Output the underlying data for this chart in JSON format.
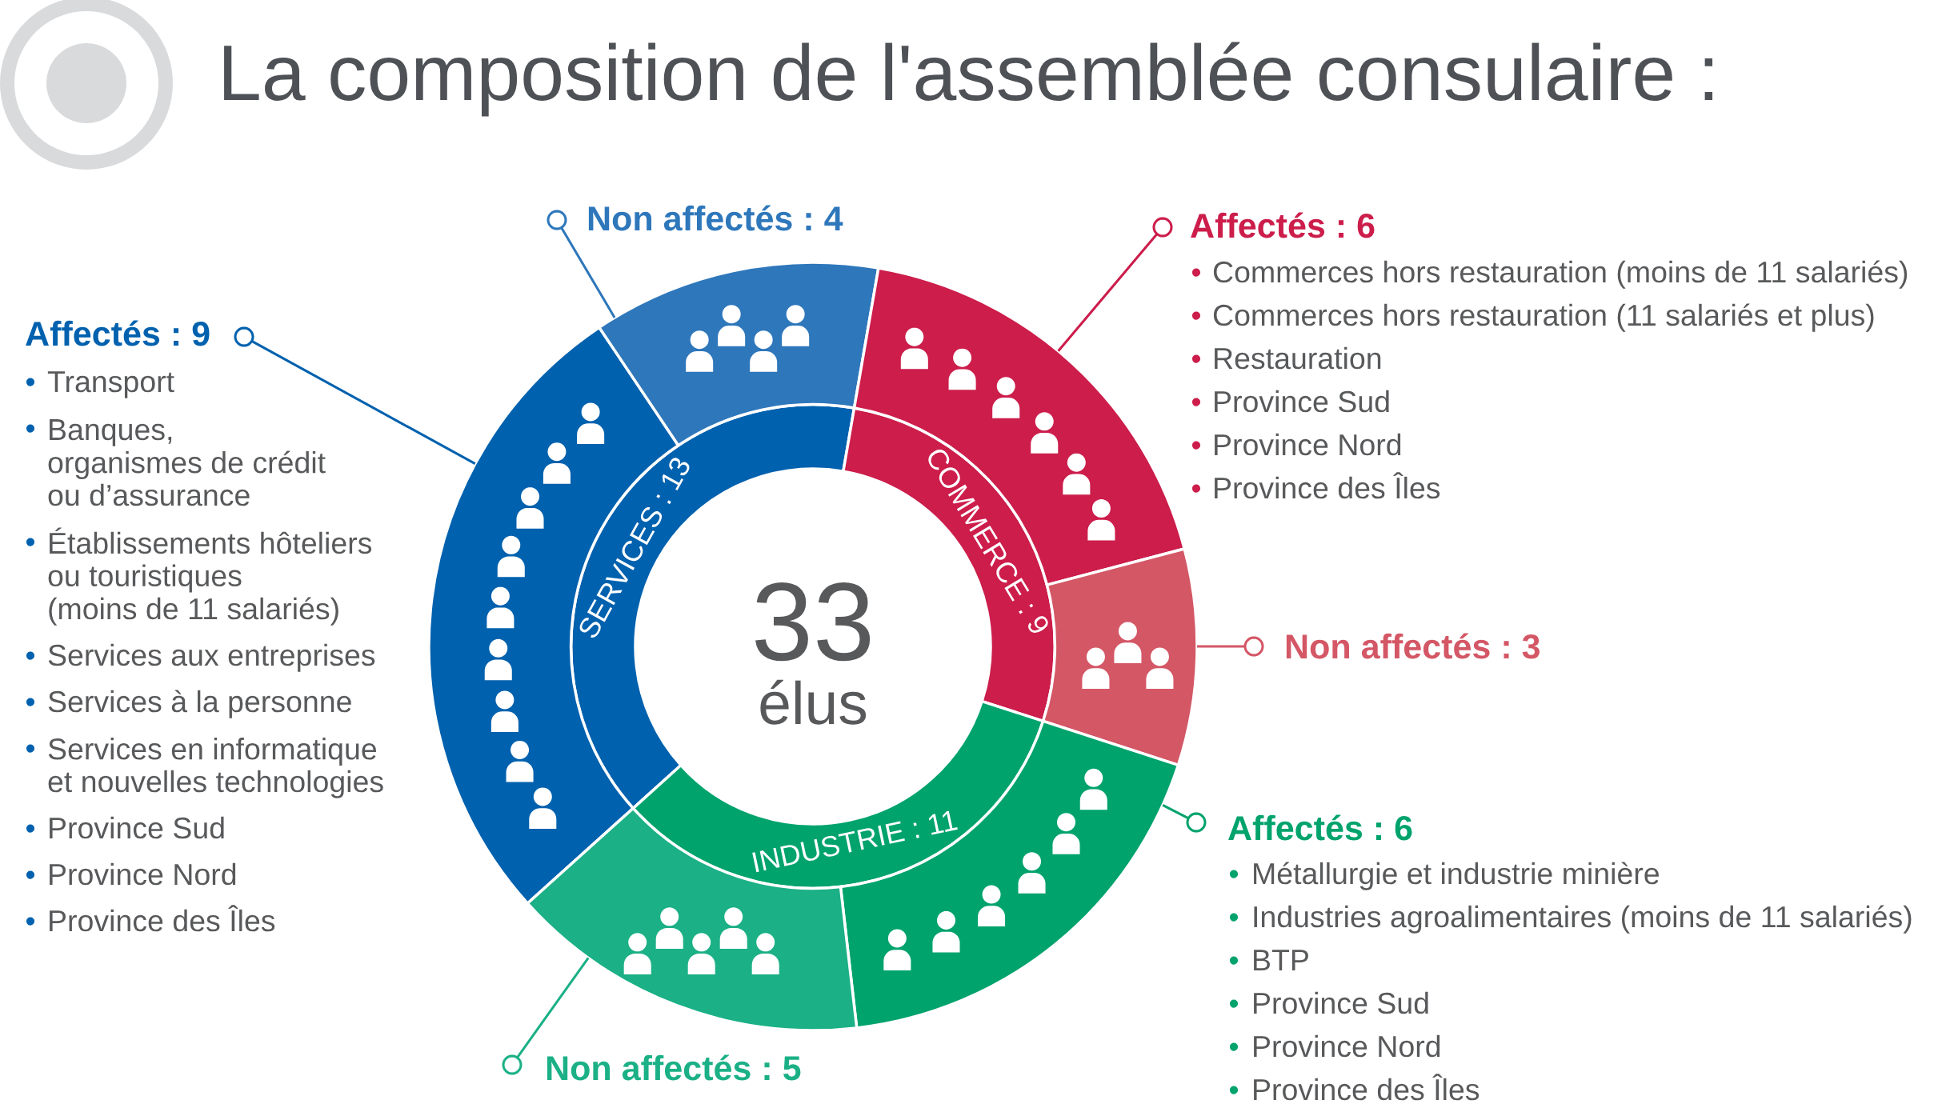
{
  "chart_data": {
    "type": "donut",
    "title": "La composition de l'assemblée consulaire :",
    "series": [
      {
        "values": [
          13,
          9,
          11
        ],
        "value_labels": [
          "SERVICES : 13",
          "COMMERCE : 9",
          "INDUSTRIE : 11"
        ],
        "colors": [
          "#0061ae",
          "#cc1d4b",
          "#00a36c"
        ]
      },
      {
        "values": [
          9,
          4,
          6,
          3,
          6,
          5
        ],
        "value_labels": [
          "Affectés : 9",
          "Non affectés : 4",
          "Affectés : 6",
          "Non affectés : 3",
          "Affectés : 6",
          "Non affectés : 5"
        ],
        "colors": [
          "#0061ae",
          "#2e77bb",
          "#cc1d4b",
          "#d45766",
          "#00a36c",
          "#1bb086"
        ]
      }
    ],
    "annotations": [
      "33",
      "élus",
      "• Transport",
      "• Banques,\norganismes de crédit\nou d’assurance",
      "• Établissements hôteliers\nou touristiques\n(moins de 11 salariés)",
      "• Services aux entreprises",
      "• Services à la personne",
      "• Services en informatique\net nouvelles technologies",
      "• Province Sud",
      "• Province Nord",
      "• Province des Îles",
      "• Commerces hors restauration (moins de 11 salariés)",
      "• Commerces hors restauration (11 salariés et plus)",
      "• Restauration",
      "• Province Sud",
      "• Province Nord",
      "• Province des Îles",
      "• Métallurgie et industrie minière",
      "• Industries agroalimentaires (moins de 11 salariés)",
      "• BTP",
      "• Province Sud",
      "• Province Nord",
      "• Province des Îles"
    ]
  }
}
